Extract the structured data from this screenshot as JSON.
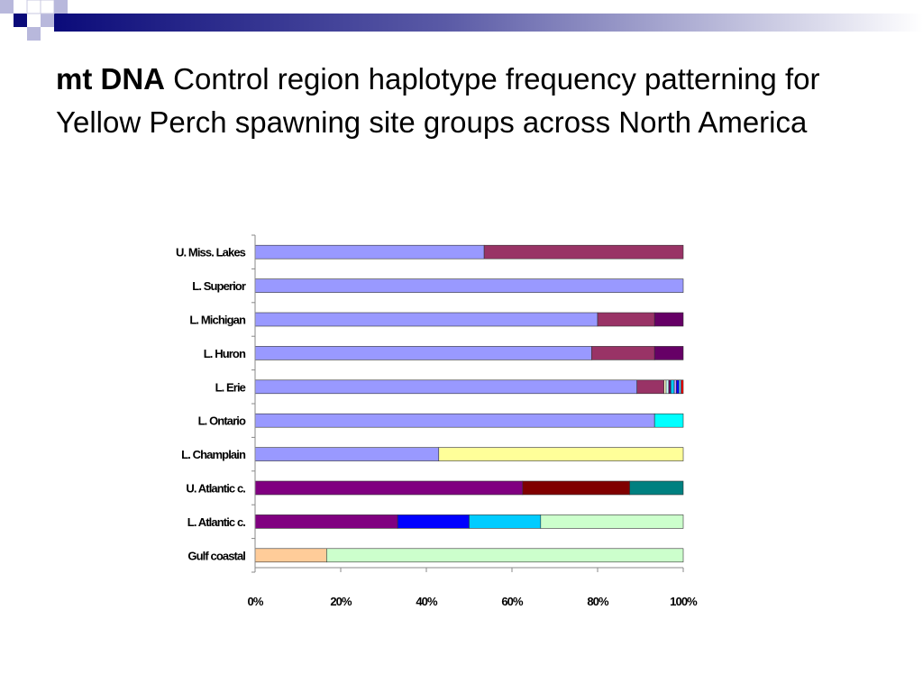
{
  "slide": {
    "title_bold": "mt DNA",
    "title_rest": " Control region haplotype frequency patterning for Yellow Perch spawning site groups across North America"
  },
  "chart_data": {
    "type": "bar",
    "orientation": "horizontal",
    "stacked": true,
    "normalized": true,
    "categories": [
      "U. Miss. Lakes",
      "L. Superior",
      "L. Michigan",
      "L. Huron",
      "L. Erie",
      "L. Ontario",
      "L. Champlain",
      "U. Atlantic c.",
      "L. Atlantic c.",
      "Gulf coastal"
    ],
    "x_ticks": [
      "0%",
      "20%",
      "40%",
      "60%",
      "80%",
      "100%"
    ],
    "xlim": [
      0,
      100
    ],
    "grid": false,
    "legend": "none",
    "segments": [
      [
        {
          "value": 53.5,
          "color": "#9999ff"
        },
        {
          "value": 46.5,
          "color": "#993366"
        }
      ],
      [
        {
          "value": 100,
          "color": "#9999ff"
        }
      ],
      [
        {
          "value": 80,
          "color": "#9999ff"
        },
        {
          "value": 13.3,
          "color": "#993366"
        },
        {
          "value": 6.7,
          "color": "#660066"
        }
      ],
      [
        {
          "value": 78.6,
          "color": "#9999ff"
        },
        {
          "value": 14.7,
          "color": "#993366"
        },
        {
          "value": 6.7,
          "color": "#660066"
        }
      ],
      [
        {
          "value": 89.2,
          "color": "#9999ff"
        },
        {
          "value": 6.3,
          "color": "#993366"
        },
        {
          "value": 0.5,
          "color": "#ffffcc"
        },
        {
          "value": 0.6,
          "color": "#ccffff"
        },
        {
          "value": 0.5,
          "color": "#660066"
        },
        {
          "value": 0.8,
          "color": "#00ccff"
        },
        {
          "value": 0.5,
          "color": "#cc99ff"
        },
        {
          "value": 0.6,
          "color": "#0000ff"
        },
        {
          "value": 0.5,
          "color": "#66ccff"
        },
        {
          "value": 0.5,
          "color": "#ff0000"
        }
      ],
      [
        {
          "value": 93.3,
          "color": "#9999ff"
        },
        {
          "value": 6.7,
          "color": "#00ffff"
        }
      ],
      [
        {
          "value": 42.9,
          "color": "#9999ff"
        },
        {
          "value": 57.1,
          "color": "#ffff99"
        }
      ],
      [
        {
          "value": 62.5,
          "color": "#800080"
        },
        {
          "value": 25,
          "color": "#800000"
        },
        {
          "value": 12.5,
          "color": "#008080"
        }
      ],
      [
        {
          "value": 33.3,
          "color": "#800080"
        },
        {
          "value": 16.7,
          "color": "#0000ff"
        },
        {
          "value": 16.7,
          "color": "#00ccff"
        },
        {
          "value": 33.3,
          "color": "#ccffcc"
        }
      ],
      [
        {
          "value": 16.7,
          "color": "#ffcc99"
        },
        {
          "value": 83.3,
          "color": "#ccffcc"
        }
      ]
    ]
  }
}
